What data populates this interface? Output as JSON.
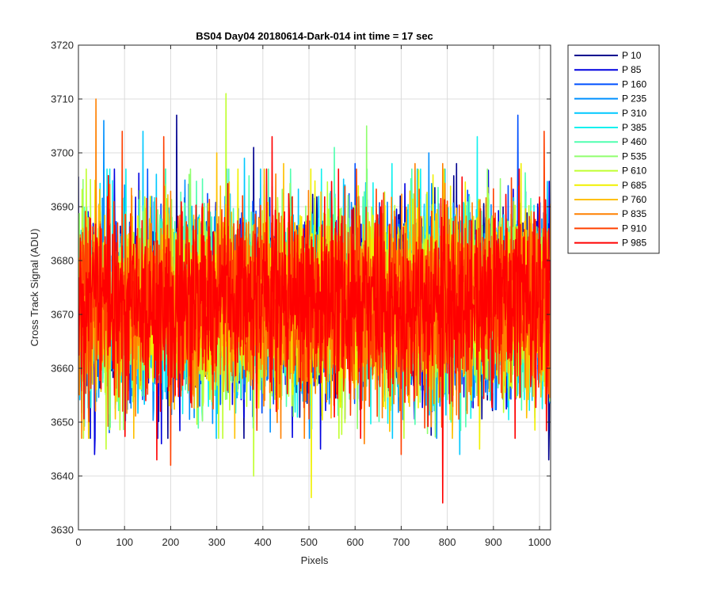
{
  "chart_data": {
    "type": "line",
    "title": "BS04 Day04 20180614-Dark-014 int time = 17 sec",
    "xlabel": "Pixels",
    "ylabel": "Cross Track Signal (ADU)",
    "xlim": [
      0,
      1024
    ],
    "ylim": [
      3630,
      3720
    ],
    "xticks": [
      0,
      100,
      200,
      300,
      400,
      500,
      600,
      700,
      800,
      900,
      1000
    ],
    "yticks": [
      3630,
      3640,
      3650,
      3660,
      3670,
      3680,
      3690,
      3700,
      3710,
      3720
    ],
    "grid": true,
    "legend_position": "outside-top-right",
    "signal_mean": 3672,
    "signal_noise_sd": 8.5,
    "series": [
      {
        "name": "P 10",
        "color": "#00008f",
        "spikes": [
          [
            213,
            3707
          ],
          [
            380,
            3701
          ],
          [
            1020,
            3643
          ],
          [
            820,
            3698
          ]
        ]
      },
      {
        "name": "P 85",
        "color": "#0000e0",
        "spikes": [
          [
            35,
            3644
          ],
          [
            180,
            3646
          ],
          [
            525,
            3645
          ]
        ]
      },
      {
        "name": "P 160",
        "color": "#0050ff",
        "spikes": [
          [
            953,
            3707
          ],
          [
            600,
            3698
          ],
          [
            150,
            3697
          ]
        ]
      },
      {
        "name": "P 235",
        "color": "#0090ff",
        "spikes": [
          [
            55,
            3706
          ],
          [
            760,
            3700
          ]
        ]
      },
      {
        "name": "P 310",
        "color": "#00c8ff",
        "spikes": [
          [
            140,
            3704
          ],
          [
            827,
            3644
          ],
          [
            360,
            3699
          ]
        ]
      },
      {
        "name": "P 385",
        "color": "#10f0ef",
        "spikes": [
          [
            865,
            3703
          ],
          [
            680,
            3698
          ]
        ]
      },
      {
        "name": "P 460",
        "color": "#50ffaf",
        "spikes": [
          [
            555,
            3701
          ],
          [
            460,
            3697
          ]
        ]
      },
      {
        "name": "P 535",
        "color": "#90ff6f",
        "spikes": [
          [
            625,
            3705
          ],
          [
            240,
            3696
          ]
        ]
      },
      {
        "name": "P 610",
        "color": "#c0ff30",
        "spikes": [
          [
            320,
            3711
          ],
          [
            380,
            3640
          ],
          [
            60,
            3645
          ]
        ]
      },
      {
        "name": "P 685",
        "color": "#f0f000",
        "spikes": [
          [
            505,
            3636
          ],
          [
            870,
            3645
          ],
          [
            960,
            3698
          ]
        ]
      },
      {
        "name": "P 760",
        "color": "#ffc000",
        "spikes": [
          [
            300,
            3700
          ],
          [
            445,
            3698
          ]
        ]
      },
      {
        "name": "P 835",
        "color": "#ff8000",
        "spikes": [
          [
            38,
            3710
          ],
          [
            790,
            3698
          ],
          [
            620,
            3646
          ],
          [
            730,
            3698
          ]
        ]
      },
      {
        "name": "P 910",
        "color": "#ff4000",
        "spikes": [
          [
            185,
            3703
          ],
          [
            1010,
            3704
          ],
          [
            200,
            3642
          ],
          [
            700,
            3644
          ],
          [
            95,
            3704
          ]
        ]
      },
      {
        "name": "P 985",
        "color": "#ff0000",
        "spikes": [
          [
            790,
            3635
          ],
          [
            170,
            3643
          ],
          [
            420,
            3703
          ],
          [
            210,
            3655
          ]
        ]
      }
    ]
  }
}
